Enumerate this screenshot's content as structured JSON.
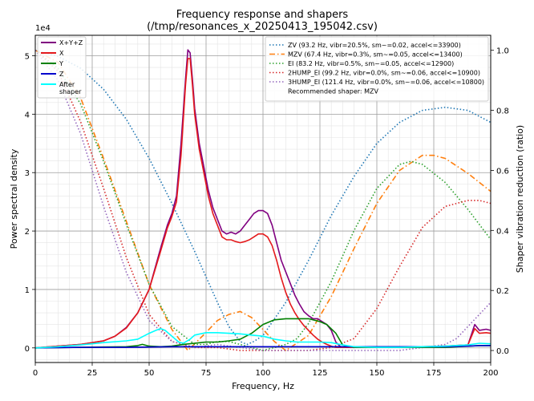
{
  "chart_data": {
    "type": "line",
    "title": "Frequency response and shapers",
    "subtitle": "(/tmp/resonances_x_20250413_195042.csv)",
    "xlabel": "Frequency, Hz",
    "ylabel": "Power spectral density",
    "y2label": "Shaper vibration reduction (ratio)",
    "y_scale_label": "1e4",
    "xlim": [
      0,
      200
    ],
    "ylim": [
      -0.25,
      5.35
    ],
    "y2lim": [
      -0.04,
      1.05
    ],
    "xticks": [
      "0",
      "25",
      "50",
      "75",
      "100",
      "125",
      "150",
      "175",
      "200"
    ],
    "yticks": [
      "0",
      "1",
      "2",
      "3",
      "4",
      "5"
    ],
    "y2ticks": [
      "0.0",
      "0.2",
      "0.4",
      "0.6",
      "0.8",
      "1.0"
    ],
    "grid": true,
    "psd_legend_placement": "top-left",
    "shaper_legend_placement": "top-right",
    "psd_series": [
      {
        "name": "X+Y+Z",
        "color": "#800080",
        "style": "solid",
        "x": [
          0,
          10,
          20,
          30,
          35,
          40,
          45,
          50,
          55,
          58,
          60,
          62,
          64,
          66,
          67,
          68,
          69,
          70,
          72,
          74,
          76,
          78,
          80,
          82,
          84,
          86,
          88,
          90,
          92,
          94,
          96,
          98,
          100,
          102,
          104,
          106,
          108,
          110,
          112,
          114,
          116,
          118,
          120,
          122,
          124,
          126,
          128,
          130,
          132,
          134,
          136,
          138,
          140,
          150,
          160,
          170,
          180,
          190,
          193,
          195,
          198,
          200
        ],
        "y": [
          0.0,
          0.03,
          0.06,
          0.12,
          0.2,
          0.35,
          0.6,
          1.0,
          1.7,
          2.1,
          2.3,
          2.6,
          3.5,
          4.6,
          5.1,
          5.05,
          4.6,
          4.1,
          3.5,
          3.1,
          2.7,
          2.4,
          2.2,
          2.0,
          1.95,
          1.98,
          1.95,
          2.0,
          2.1,
          2.2,
          2.3,
          2.35,
          2.35,
          2.3,
          2.1,
          1.8,
          1.5,
          1.3,
          1.1,
          0.9,
          0.75,
          0.62,
          0.55,
          0.5,
          0.5,
          0.45,
          0.4,
          0.3,
          0.1,
          0.02,
          0.01,
          0.01,
          0.01,
          0.01,
          0.01,
          0.02,
          0.03,
          0.05,
          0.4,
          0.3,
          0.32,
          0.3
        ]
      },
      {
        "name": "X",
        "color": "#e41a1c",
        "style": "solid",
        "x": [
          0,
          10,
          20,
          30,
          35,
          40,
          45,
          50,
          55,
          58,
          60,
          62,
          64,
          66,
          67,
          68,
          69,
          70,
          72,
          74,
          76,
          78,
          80,
          82,
          84,
          86,
          88,
          90,
          92,
          94,
          96,
          98,
          100,
          102,
          104,
          106,
          108,
          110,
          112,
          114,
          116,
          118,
          120,
          122,
          124,
          126,
          128,
          130,
          132,
          134,
          136,
          138,
          140,
          150,
          160,
          170,
          180,
          190,
          193,
          195,
          198,
          200
        ],
        "y": [
          0.0,
          0.03,
          0.06,
          0.12,
          0.2,
          0.34,
          0.6,
          1.0,
          1.65,
          2.05,
          2.25,
          2.5,
          3.3,
          4.5,
          4.95,
          4.95,
          4.5,
          4.0,
          3.4,
          3.0,
          2.6,
          2.3,
          2.1,
          1.9,
          1.85,
          1.85,
          1.82,
          1.8,
          1.82,
          1.85,
          1.9,
          1.95,
          1.95,
          1.9,
          1.75,
          1.5,
          1.2,
          0.95,
          0.75,
          0.6,
          0.48,
          0.38,
          0.3,
          0.22,
          0.15,
          0.1,
          0.06,
          0.03,
          0.01,
          0.01,
          0.01,
          0.01,
          0.01,
          0.01,
          0.01,
          0.02,
          0.03,
          0.05,
          0.33,
          0.25,
          0.26,
          0.25
        ]
      },
      {
        "name": "Y",
        "color": "#008000",
        "style": "solid",
        "x": [
          0,
          20,
          40,
          45,
          47,
          50,
          55,
          60,
          65,
          70,
          75,
          80,
          85,
          90,
          95,
          100,
          105,
          110,
          115,
          120,
          125,
          128,
          132,
          135,
          140,
          160,
          180,
          195,
          200
        ],
        "y": [
          0.0,
          0.01,
          0.02,
          0.04,
          0.06,
          0.03,
          0.02,
          0.03,
          0.06,
          0.08,
          0.1,
          0.1,
          0.12,
          0.15,
          0.25,
          0.4,
          0.48,
          0.5,
          0.5,
          0.5,
          0.45,
          0.4,
          0.25,
          0.05,
          0.01,
          0.01,
          0.01,
          0.04,
          0.04
        ]
      },
      {
        "name": "Z",
        "color": "#0000cd",
        "style": "solid",
        "x": [
          0,
          20,
          40,
          60,
          80,
          100,
          120,
          140,
          160,
          180,
          190,
          195,
          200
        ],
        "y": [
          0.0,
          0.01,
          0.01,
          0.02,
          0.02,
          0.02,
          0.02,
          0.02,
          0.02,
          0.02,
          0.03,
          0.04,
          0.04
        ]
      },
      {
        "name": "After\nshaper",
        "color": "#00ffff",
        "style": "solid",
        "x": [
          0,
          10,
          20,
          30,
          40,
          45,
          50,
          53,
          55,
          57,
          60,
          63,
          65,
          68,
          70,
          75,
          80,
          85,
          90,
          95,
          100,
          105,
          110,
          115,
          120,
          125,
          130,
          135,
          140,
          150,
          160,
          170,
          180,
          190,
          195,
          200
        ],
        "y": [
          0.0,
          0.02,
          0.05,
          0.09,
          0.12,
          0.15,
          0.25,
          0.3,
          0.33,
          0.3,
          0.2,
          0.1,
          0.08,
          0.15,
          0.22,
          0.26,
          0.26,
          0.25,
          0.24,
          0.22,
          0.2,
          0.15,
          0.12,
          0.1,
          0.1,
          0.1,
          0.09,
          0.05,
          0.02,
          0.01,
          0.01,
          0.02,
          0.03,
          0.05,
          0.08,
          0.07
        ]
      }
    ],
    "shaper_series": [
      {
        "name": "ZV (93.2 Hz, vibr=20.5%, sm~=0.02, accel<=33900)",
        "color": "#1f77b4",
        "style": "dotted",
        "x": [
          0,
          10,
          20,
          30,
          40,
          50,
          60,
          70,
          80,
          85,
          90,
          93,
          96,
          100,
          110,
          120,
          130,
          140,
          150,
          160,
          170,
          180,
          190,
          200
        ],
        "y": [
          1.0,
          0.98,
          0.94,
          0.87,
          0.77,
          0.64,
          0.49,
          0.33,
          0.16,
          0.08,
          0.03,
          0.02,
          0.03,
          0.05,
          0.16,
          0.3,
          0.45,
          0.58,
          0.69,
          0.76,
          0.8,
          0.81,
          0.8,
          0.76
        ]
      },
      {
        "name": "MZV (67.4 Hz, vibr=0.3%, sm~=0.05, accel<=13400)",
        "color": "#ff7f0e",
        "style": "dashdot",
        "x": [
          0,
          10,
          20,
          30,
          40,
          50,
          60,
          67,
          75,
          80,
          85,
          90,
          95,
          100,
          105,
          110,
          120,
          130,
          140,
          150,
          160,
          170,
          175,
          180,
          190,
          200
        ],
        "y": [
          1.0,
          0.96,
          0.84,
          0.64,
          0.43,
          0.22,
          0.07,
          0.0,
          0.06,
          0.1,
          0.12,
          0.13,
          0.11,
          0.07,
          0.03,
          0.0,
          0.05,
          0.18,
          0.34,
          0.49,
          0.6,
          0.65,
          0.65,
          0.64,
          0.59,
          0.53
        ]
      },
      {
        "name": "EI (83.2 Hz, vibr=0.5%, sm~=0.05, accel<=12900)",
        "color": "#2ca02c",
        "style": "dotted",
        "x": [
          0,
          10,
          20,
          30,
          40,
          50,
          60,
          70,
          75,
          80,
          85,
          90,
          95,
          100,
          105,
          110,
          115,
          120,
          130,
          140,
          150,
          160,
          165,
          170,
          180,
          190,
          200
        ],
        "y": [
          1.0,
          0.94,
          0.82,
          0.63,
          0.42,
          0.22,
          0.08,
          0.02,
          0.02,
          0.03,
          0.03,
          0.02,
          0.01,
          0.0,
          0.01,
          0.02,
          0.04,
          0.09,
          0.23,
          0.4,
          0.54,
          0.62,
          0.63,
          0.62,
          0.56,
          0.47,
          0.37
        ]
      },
      {
        "name": "2HUMP_EI (99.2 Hz, vibr=0.0%, sm~=0.06, accel<=10900)",
        "color": "#d62728",
        "style": "dotted",
        "x": [
          0,
          10,
          20,
          30,
          40,
          50,
          60,
          70,
          80,
          90,
          100,
          110,
          120,
          130,
          140,
          150,
          160,
          170,
          180,
          190,
          195,
          200
        ],
        "y": [
          1.0,
          0.93,
          0.76,
          0.54,
          0.31,
          0.12,
          0.03,
          0.01,
          0.01,
          0.0,
          0.0,
          0.0,
          0.0,
          0.01,
          0.04,
          0.14,
          0.28,
          0.41,
          0.48,
          0.5,
          0.5,
          0.49
        ]
      },
      {
        "name": "3HUMP_EI (121.4 Hz, vibr=0.0%, sm~=0.06, accel<=10800)",
        "color": "#9467bd",
        "style": "dotted",
        "x": [
          0,
          10,
          20,
          30,
          40,
          50,
          60,
          70,
          80,
          90,
          100,
          110,
          120,
          130,
          140,
          150,
          160,
          170,
          180,
          185,
          190,
          195,
          200
        ],
        "y": [
          1.0,
          0.9,
          0.72,
          0.48,
          0.26,
          0.1,
          0.03,
          0.01,
          0.02,
          0.01,
          0.0,
          0.0,
          0.0,
          0.0,
          0.0,
          0.0,
          0.0,
          0.01,
          0.02,
          0.04,
          0.08,
          0.12,
          0.16
        ]
      }
    ],
    "recommended_text": "Recommended shaper: MZV"
  }
}
